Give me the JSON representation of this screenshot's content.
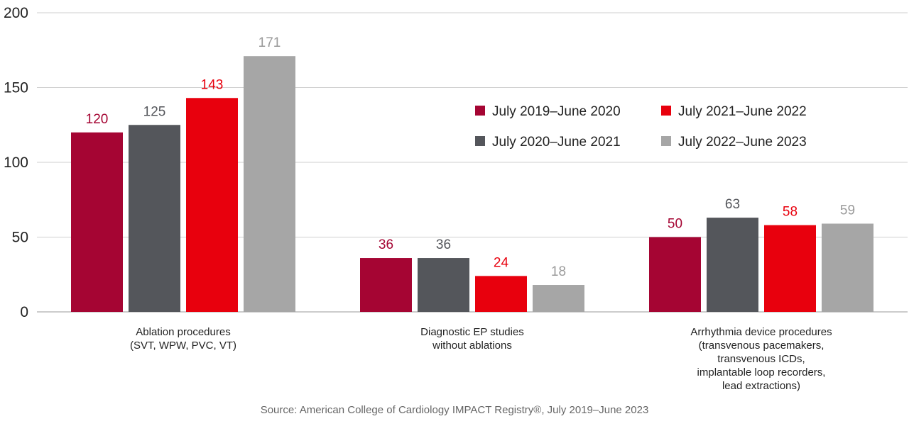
{
  "chart_data": {
    "type": "bar",
    "title": "",
    "xlabel": "",
    "ylabel": "",
    "ylim": [
      0,
      200
    ],
    "yticks": [
      "0",
      "50",
      "100",
      "150",
      "200"
    ],
    "grid": true,
    "legend_position": "top-right",
    "categories": [
      [
        "Ablation procedures",
        "(SVT, WPW, PVC, VT)"
      ],
      [
        "Diagnostic EP studies",
        "without ablations"
      ],
      [
        "Arrhythmia device procedures",
        "(transvenous pacemakers,",
        "transvenous ICDs,",
        "implantable loop recorders,",
        "lead extractions)"
      ]
    ],
    "series": [
      {
        "name": "July 2019–June 2020",
        "color": "#A50533",
        "label_color": "#A50533",
        "values": [
          120,
          36,
          50
        ]
      },
      {
        "name": "July 2020–June 2021",
        "color": "#54565B",
        "label_color": "#54565B",
        "values": [
          125,
          36,
          63
        ]
      },
      {
        "name": "July 2021–June 2022",
        "color": "#E8000D",
        "label_color": "#E8000D",
        "values": [
          143,
          24,
          58
        ]
      },
      {
        "name": "July 2022–June 2023",
        "color": "#A6A6A6",
        "label_color": "#9A9A9A",
        "values": [
          171,
          18,
          59
        ]
      }
    ],
    "legend_order": [
      0,
      2,
      1,
      3
    ],
    "source": "Source: American College of Cardiology IMPACT Registry®, July 2019–June 2023"
  }
}
